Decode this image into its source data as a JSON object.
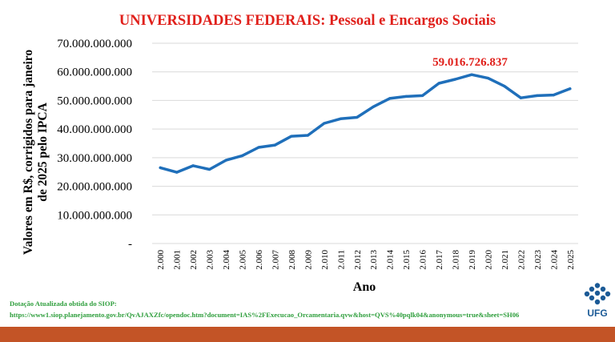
{
  "chart_data": {
    "type": "line",
    "title": "UNIVERSIDADES FEDERAIS: Pessoal e Encargos Sociais",
    "ylabel_line1": "Valores em R$, corrigidos para janeiro",
    "ylabel_line2": "de 2025 pelo IPCA",
    "xlabel": "Ano",
    "y_ticks": [
      0,
      10000000000,
      20000000000,
      30000000000,
      40000000000,
      50000000000,
      60000000000,
      70000000000
    ],
    "y_tick_labels": [
      "-",
      "10.000.000.000",
      "20.000.000.000",
      "30.000.000.000",
      "40.000.000.000",
      "50.000.000.000",
      "60.000.000.000",
      "70.000.000.000"
    ],
    "ylim": [
      0,
      70000000000
    ],
    "grid": true,
    "categories": [
      "2.000",
      "2.001",
      "2.002",
      "2.003",
      "2.004",
      "2.005",
      "2.006",
      "2.007",
      "2.008",
      "2.009",
      "2.010",
      "2.011",
      "2.012",
      "2.013",
      "2.014",
      "2.015",
      "2.016",
      "2.017",
      "2.018",
      "2.019",
      "2.020",
      "2.021",
      "2.022",
      "2.023",
      "2.024",
      "2.025"
    ],
    "series": [
      {
        "color": "#1f6fba",
        "values": [
          26500000000,
          24900000000,
          27200000000,
          25900000000,
          29100000000,
          30700000000,
          33600000000,
          34400000000,
          37500000000,
          37800000000,
          42000000000,
          43600000000,
          44100000000,
          47800000000,
          50700000000,
          51400000000,
          51700000000,
          56000000000,
          57400000000,
          59016726837,
          57800000000,
          55000000000,
          50900000000,
          51700000000,
          51900000000,
          54100000000
        ]
      }
    ],
    "annotation": {
      "label": "59.016.726.837",
      "index": 19
    }
  },
  "source": {
    "line1": "Dotação Atualizada obtida do SIOP:",
    "line2": "https://www1.siop.planejamento.gov.br/QvAJAXZfc/opendoc.htm?document=IAS%2FExecucao_Orcamentaria.qvw&host=QVS%40pqlk04&anonymous=true&sheet=SH06"
  },
  "logo": {
    "text": "UFG"
  },
  "colors": {
    "bottom_bar": "#c35426",
    "title": "#e0201b",
    "source": "#2e9e3c",
    "line": "#1f6fba",
    "logo": "#1b5a96"
  }
}
